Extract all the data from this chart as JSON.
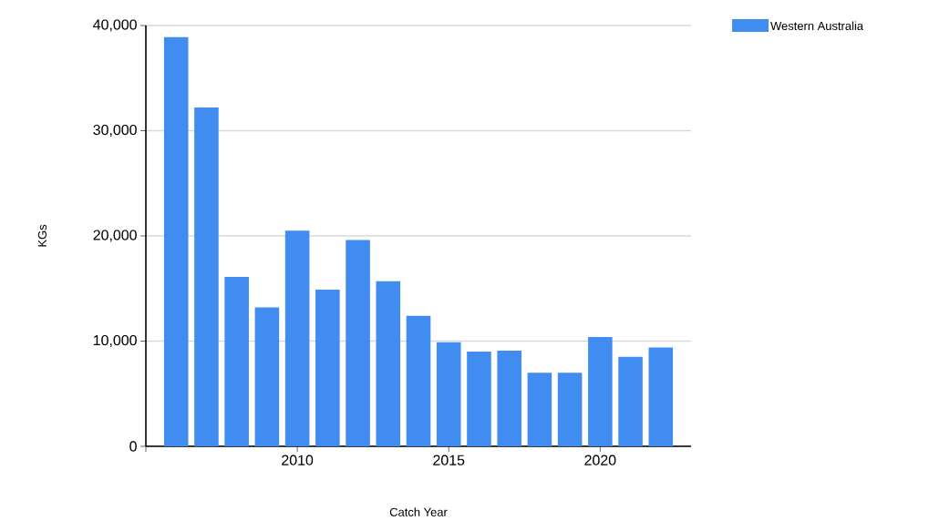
{
  "chart_data": {
    "type": "bar",
    "xlabel": "Catch Year",
    "ylabel": "KGs",
    "x": [
      2006,
      2007,
      2008,
      2009,
      2010,
      2011,
      2012,
      2013,
      2014,
      2015,
      2016,
      2017,
      2018,
      2019,
      2020,
      2021,
      2022
    ],
    "series": [
      {
        "name": "Western Australia",
        "color": "#418cf0",
        "values": [
          38900,
          32200,
          16100,
          13200,
          20500,
          14900,
          19600,
          15700,
          12400,
          9900,
          9000,
          9100,
          7000,
          7000,
          10400,
          8500,
          9400
        ]
      }
    ],
    "xlim": [
      2005,
      2023
    ],
    "xticks": [
      {
        "value": 2005,
        "label": null
      },
      2010,
      2015,
      2020
    ],
    "ylim": [
      0,
      40000
    ],
    "yticks": [
      0,
      {
        "value": 10000,
        "label": "10,000"
      },
      {
        "value": 20000,
        "label": "20,000"
      },
      {
        "value": 30000,
        "label": "30,000"
      },
      {
        "value": 40000,
        "label": "40,000"
      }
    ],
    "grid": "y",
    "legend": "top right"
  }
}
